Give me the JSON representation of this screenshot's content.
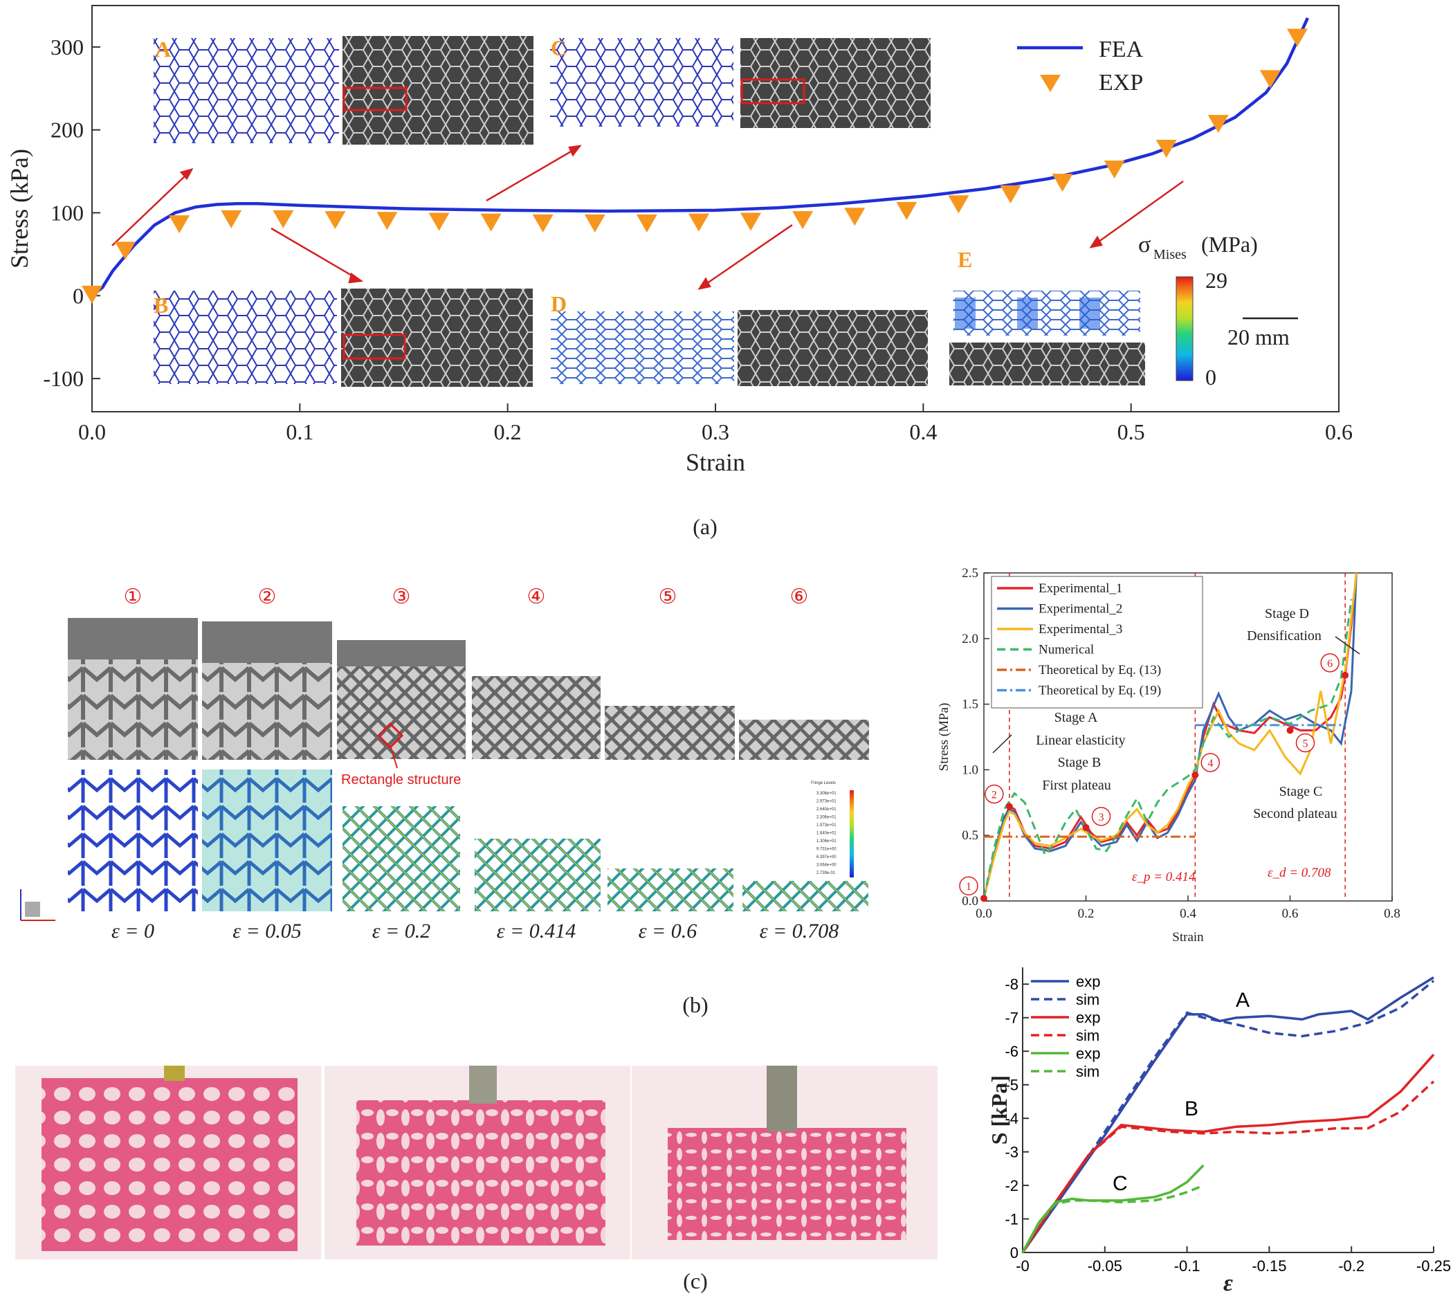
{
  "captions": {
    "a": "(a)",
    "b": "(b)",
    "c": "(c)"
  },
  "panel_a": {
    "letters": {
      "A": "A",
      "B": "B",
      "C": "C",
      "D": "D",
      "E": "E"
    },
    "colorbar": {
      "label_sigma": "σ",
      "label_sub": "Mises",
      "label_unit": "(MPa)",
      "max": "29",
      "min": "0"
    },
    "scale_bar": "20 mm"
  },
  "panel_b": {
    "stage_numbers": [
      "①",
      "②",
      "③",
      "④",
      "⑤",
      "⑥"
    ],
    "strain_labels": [
      "ε = 0",
      "ε = 0.05",
      "ε = 0.2",
      "ε = 0.414",
      "ε = 0.6",
      "ε = 0.708"
    ],
    "rect_label": "Rectangle structure",
    "fringe_title": "Fringe Levels",
    "fringe_values": [
      "3.306e+01",
      "2.973e+01",
      "2.640e+01",
      "2.306e+01",
      "1.973e+01",
      "1.640e+01",
      "1.306e+01",
      "9.731e+00",
      "6.397e+00",
      "3.064e+00",
      "2.739e-01"
    ]
  },
  "chart_data": [
    {
      "type": "line",
      "panel": "a",
      "xlabel": "Strain",
      "ylabel": "Stress (kPa)",
      "xlim": [
        0.0,
        0.6
      ],
      "ylim": [
        -140,
        350
      ],
      "xticks": [
        "0.0",
        "0.1",
        "0.2",
        "0.3",
        "0.4",
        "0.5",
        "0.6"
      ],
      "yticks": [
        "-100",
        "0",
        "100",
        "200",
        "300"
      ],
      "legend": [
        "FEA",
        "EXP"
      ],
      "legend_position": "top-right",
      "colors": {
        "FEA": "#1f2fd6",
        "EXP": "#f7961e"
      },
      "series": [
        {
          "name": "FEA",
          "style": "line",
          "x": [
            0.0,
            0.005,
            0.01,
            0.02,
            0.03,
            0.04,
            0.05,
            0.06,
            0.07,
            0.08,
            0.1,
            0.15,
            0.2,
            0.25,
            0.3,
            0.33,
            0.36,
            0.4,
            0.43,
            0.46,
            0.49,
            0.51,
            0.53,
            0.55,
            0.565,
            0.575,
            0.585
          ],
          "y": [
            0,
            10,
            30,
            60,
            85,
            100,
            107,
            110,
            111,
            111,
            109,
            105,
            103,
            102,
            103,
            106,
            111,
            120,
            129,
            141,
            157,
            171,
            190,
            215,
            245,
            280,
            335
          ]
        },
        {
          "name": "EXP",
          "style": "marker",
          "x": [
            0.0,
            0.016,
            0.042,
            0.067,
            0.092,
            0.117,
            0.142,
            0.167,
            0.192,
            0.217,
            0.242,
            0.267,
            0.292,
            0.317,
            0.342,
            0.367,
            0.392,
            0.417,
            0.442,
            0.467,
            0.492,
            0.517,
            0.542,
            0.567,
            0.58
          ],
          "y": [
            2,
            55,
            87,
            93,
            93,
            92,
            91,
            90,
            89,
            88,
            88,
            88,
            89,
            90,
            92,
            96,
            103,
            111,
            123,
            137,
            153,
            178,
            208,
            262,
            312
          ]
        }
      ]
    },
    {
      "type": "line",
      "panel": "b",
      "xlabel": "Strain",
      "ylabel": "Stress (MPa)",
      "xlim": [
        0.0,
        0.8
      ],
      "ylim": [
        0.0,
        2.5
      ],
      "xticks": [
        "0.0",
        "0.2",
        "0.4",
        "0.6",
        "0.8"
      ],
      "yticks": [
        "0.0",
        "0.5",
        "1.0",
        "1.5",
        "2.0",
        "2.5"
      ],
      "legend_position": "top-left",
      "annotations": [
        "Stage A",
        "Linear elasticity",
        "Stage B",
        "First plateau",
        "Stage C",
        "Second plateau",
        "Stage D",
        "Densification",
        "ε_p = 0.414",
        "ε_d = 0.708"
      ],
      "series": [
        {
          "name": "Experimental_1",
          "color": "#e8222a",
          "style": "solid",
          "x": [
            0,
            0.02,
            0.04,
            0.05,
            0.06,
            0.08,
            0.1,
            0.13,
            0.16,
            0.19,
            0.21,
            0.23,
            0.26,
            0.28,
            0.3,
            0.32,
            0.34,
            0.36,
            0.38,
            0.4,
            0.414,
            0.43,
            0.45,
            0.47,
            0.5,
            0.53,
            0.56,
            0.59,
            0.62,
            0.65,
            0.68,
            0.7,
            0.708,
            0.72,
            0.73
          ],
          "y": [
            0.02,
            0.35,
            0.62,
            0.72,
            0.7,
            0.52,
            0.42,
            0.4,
            0.45,
            0.64,
            0.52,
            0.45,
            0.48,
            0.6,
            0.5,
            0.62,
            0.52,
            0.55,
            0.68,
            0.85,
            0.96,
            1.25,
            1.5,
            1.35,
            1.3,
            1.28,
            1.4,
            1.35,
            1.3,
            1.3,
            1.4,
            1.55,
            1.72,
            2.1,
            2.5
          ]
        },
        {
          "name": "Experimental_2",
          "color": "#3a66b0",
          "style": "solid",
          "x": [
            0,
            0.02,
            0.04,
            0.05,
            0.06,
            0.08,
            0.1,
            0.13,
            0.16,
            0.19,
            0.21,
            0.23,
            0.26,
            0.28,
            0.3,
            0.32,
            0.34,
            0.36,
            0.38,
            0.4,
            0.414,
            0.43,
            0.46,
            0.48,
            0.5,
            0.53,
            0.56,
            0.59,
            0.62,
            0.65,
            0.68,
            0.7,
            0.72,
            0.73
          ],
          "y": [
            0.02,
            0.35,
            0.64,
            0.7,
            0.68,
            0.5,
            0.4,
            0.38,
            0.42,
            0.6,
            0.5,
            0.42,
            0.45,
            0.58,
            0.46,
            0.6,
            0.48,
            0.52,
            0.65,
            0.82,
            0.92,
            1.3,
            1.58,
            1.4,
            1.3,
            1.35,
            1.45,
            1.38,
            1.42,
            1.35,
            1.3,
            1.2,
            1.6,
            2.5
          ]
        },
        {
          "name": "Experimental_3",
          "color": "#f6b81c",
          "style": "solid",
          "x": [
            0,
            0.02,
            0.04,
            0.05,
            0.06,
            0.08,
            0.1,
            0.13,
            0.16,
            0.19,
            0.21,
            0.23,
            0.26,
            0.28,
            0.3,
            0.32,
            0.34,
            0.36,
            0.38,
            0.4,
            0.414,
            0.43,
            0.46,
            0.48,
            0.5,
            0.53,
            0.56,
            0.59,
            0.62,
            0.64,
            0.66,
            0.68,
            0.71,
            0.73
          ],
          "y": [
            0.02,
            0.33,
            0.6,
            0.68,
            0.66,
            0.52,
            0.44,
            0.42,
            0.48,
            0.55,
            0.5,
            0.46,
            0.5,
            0.62,
            0.7,
            0.58,
            0.52,
            0.58,
            0.7,
            0.88,
            0.98,
            1.2,
            1.45,
            1.28,
            1.2,
            1.15,
            1.3,
            1.1,
            0.97,
            1.15,
            1.6,
            1.2,
            1.8,
            2.5
          ]
        },
        {
          "name": "Numerical",
          "color": "#3db86c",
          "style": "dashed",
          "x": [
            0,
            0.02,
            0.04,
            0.06,
            0.08,
            0.1,
            0.12,
            0.14,
            0.16,
            0.18,
            0.2,
            0.22,
            0.24,
            0.26,
            0.28,
            0.3,
            0.32,
            0.34,
            0.36,
            0.38,
            0.4,
            0.414,
            0.43,
            0.45,
            0.48,
            0.5,
            0.53,
            0.56,
            0.6,
            0.64,
            0.68,
            0.7,
            0.72
          ],
          "y": [
            0.02,
            0.4,
            0.7,
            0.82,
            0.75,
            0.55,
            0.35,
            0.45,
            0.6,
            0.7,
            0.55,
            0.4,
            0.38,
            0.5,
            0.65,
            0.78,
            0.6,
            0.75,
            0.85,
            0.9,
            0.95,
            1.0,
            1.2,
            1.4,
            1.25,
            1.3,
            1.35,
            1.4,
            1.35,
            1.45,
            1.5,
            1.7,
            2.3
          ]
        },
        {
          "name": "Theoretical by Eq. (13)",
          "color": "#d9631f",
          "style": "dashdot",
          "x": [
            0,
            0.414
          ],
          "y": [
            0.49,
            0.49
          ]
        },
        {
          "name": "Theoretical by Eq. (19)",
          "color": "#4a90d9",
          "style": "dashdot",
          "x": [
            0.414,
            0.708
          ],
          "y": [
            1.34,
            1.34
          ]
        }
      ]
    },
    {
      "type": "line",
      "panel": "c",
      "xlabel": "ε",
      "ylabel": "S [kPa]",
      "xlim": [
        0,
        -0.25
      ],
      "ylim": [
        0,
        -8.5
      ],
      "xticks": [
        "-0",
        "-0.05",
        "-0.1",
        "-0.15",
        "-0.2",
        "-0.25"
      ],
      "yticks": [
        "0",
        "-1",
        "-2",
        "-3",
        "-4",
        "-5",
        "-6",
        "-7",
        "-8"
      ],
      "legend_position": "top-left",
      "curve_labels": [
        "A",
        "B",
        "C"
      ],
      "series": [
        {
          "name": "exp",
          "label": "A",
          "color": "#2f4aa8",
          "style": "solid",
          "x": [
            0,
            -0.02,
            -0.05,
            -0.08,
            -0.1,
            -0.11,
            -0.12,
            -0.13,
            -0.15,
            -0.17,
            -0.18,
            -0.2,
            -0.21,
            -0.23,
            -0.25
          ],
          "y": [
            0,
            -1.4,
            -3.5,
            -5.7,
            -7.1,
            -7.1,
            -6.9,
            -7.0,
            -7.05,
            -6.95,
            -7.1,
            -7.2,
            -6.95,
            -7.6,
            -8.2
          ]
        },
        {
          "name": "sim",
          "label": "A",
          "color": "#2f4aa8",
          "style": "dashed",
          "x": [
            0,
            -0.02,
            -0.05,
            -0.08,
            -0.1,
            -0.11,
            -0.13,
            -0.15,
            -0.17,
            -0.19,
            -0.21,
            -0.23,
            -0.25
          ],
          "y": [
            0,
            -1.4,
            -3.6,
            -5.8,
            -7.15,
            -7.0,
            -6.8,
            -6.55,
            -6.45,
            -6.6,
            -6.85,
            -7.3,
            -8.1
          ]
        },
        {
          "name": "exp",
          "label": "B",
          "color": "#e02424",
          "style": "solid",
          "x": [
            0,
            -0.02,
            -0.04,
            -0.06,
            -0.07,
            -0.09,
            -0.11,
            -0.13,
            -0.15,
            -0.17,
            -0.19,
            -0.21,
            -0.23,
            -0.25
          ],
          "y": [
            0,
            -1.5,
            -2.9,
            -3.8,
            -3.75,
            -3.65,
            -3.6,
            -3.75,
            -3.8,
            -3.9,
            -3.95,
            -4.05,
            -4.8,
            -5.9
          ]
        },
        {
          "name": "sim",
          "label": "B",
          "color": "#e02424",
          "style": "dashed",
          "x": [
            0,
            -0.02,
            -0.04,
            -0.06,
            -0.07,
            -0.09,
            -0.11,
            -0.13,
            -0.15,
            -0.17,
            -0.19,
            -0.21,
            -0.23,
            -0.25
          ],
          "y": [
            0,
            -1.5,
            -2.9,
            -3.75,
            -3.7,
            -3.6,
            -3.55,
            -3.6,
            -3.55,
            -3.6,
            -3.7,
            -3.7,
            -4.2,
            -5.1
          ]
        },
        {
          "name": "exp",
          "label": "C",
          "color": "#52b838",
          "style": "solid",
          "x": [
            0,
            -0.01,
            -0.02,
            -0.03,
            -0.04,
            -0.06,
            -0.08,
            -0.09,
            -0.1,
            -0.11
          ],
          "y": [
            0,
            -0.9,
            -1.5,
            -1.6,
            -1.55,
            -1.55,
            -1.65,
            -1.8,
            -2.1,
            -2.6
          ]
        },
        {
          "name": "sim",
          "label": "C",
          "color": "#52b838",
          "style": "dashed",
          "x": [
            0,
            -0.01,
            -0.02,
            -0.03,
            -0.04,
            -0.06,
            -0.08,
            -0.09,
            -0.1,
            -0.11
          ],
          "y": [
            0,
            -0.9,
            -1.45,
            -1.55,
            -1.55,
            -1.5,
            -1.55,
            -1.65,
            -1.8,
            -2.0
          ]
        }
      ]
    }
  ]
}
